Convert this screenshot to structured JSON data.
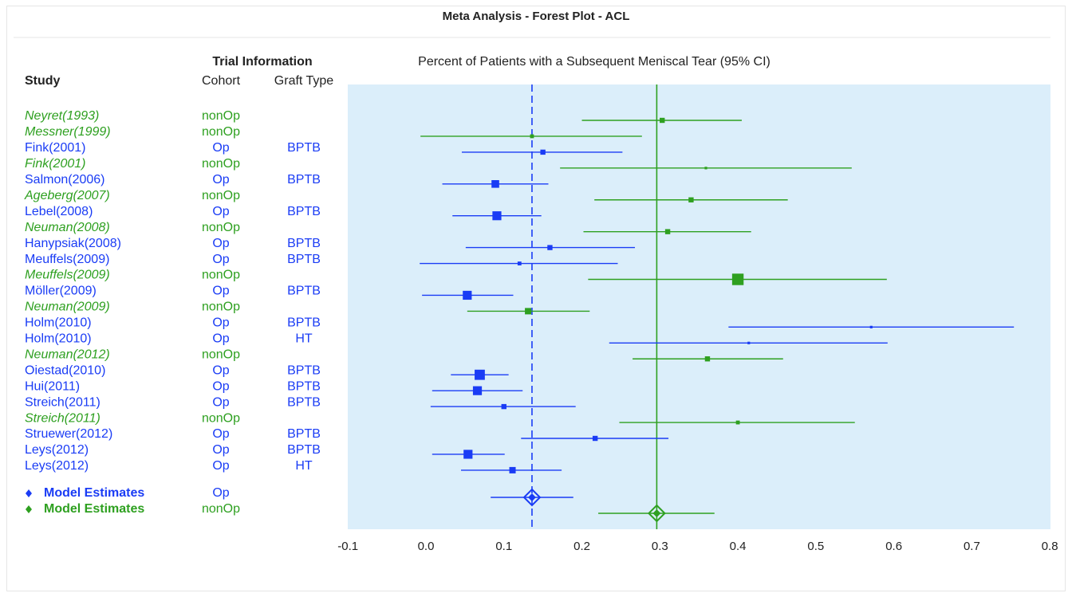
{
  "colors": {
    "op": "#1a3cf5",
    "nonop": "#2ea020",
    "plot_bg": "#dbeefa"
  },
  "chart_data": {
    "type": "forest",
    "title": "Meta Analysis - Forest Plot - ACL",
    "plot_title": "Percent of Patients with a Subsequent Meniscal Tear (95% CI)",
    "header_group": "Trial Information",
    "column_headers": {
      "study": "Study",
      "cohort": "Cohort",
      "graft": "Graft Type"
    },
    "xlim": [
      -0.1,
      0.8
    ],
    "xticks": [
      "-0.1",
      "0.0",
      "0.1",
      "0.2",
      "0.3",
      "0.4",
      "0.5",
      "0.6",
      "0.7",
      "0.8"
    ],
    "reference_lines": {
      "op_model_dashed": 0.136,
      "nonop_model_solid": 0.296
    },
    "studies": [
      {
        "study": "Neyret(1993)",
        "cohort": "nonOp",
        "graft": "",
        "est": 0.303,
        "lo": 0.2,
        "hi": 0.405,
        "size": 4
      },
      {
        "study": "Messner(1999)",
        "cohort": "nonOp",
        "graft": "",
        "est": 0.136,
        "lo": -0.007,
        "hi": 0.277,
        "size": 3
      },
      {
        "study": "Fink(2001)",
        "cohort": "Op",
        "graft": "BPTB",
        "est": 0.15,
        "lo": 0.046,
        "hi": 0.252,
        "size": 4
      },
      {
        "study": "Fink(2001)",
        "cohort": "nonOp",
        "graft": "",
        "est": 0.359,
        "lo": 0.172,
        "hi": 0.546,
        "size": 2
      },
      {
        "study": "Salmon(2006)",
        "cohort": "Op",
        "graft": "BPTB",
        "est": 0.089,
        "lo": 0.021,
        "hi": 0.157,
        "size": 6
      },
      {
        "study": "Ageberg(2007)",
        "cohort": "nonOp",
        "graft": "",
        "est": 0.34,
        "lo": 0.216,
        "hi": 0.464,
        "size": 4
      },
      {
        "study": "Lebel(2008)",
        "cohort": "Op",
        "graft": "BPTB",
        "est": 0.091,
        "lo": 0.034,
        "hi": 0.148,
        "size": 7
      },
      {
        "study": "Neuman(2008)",
        "cohort": "nonOp",
        "graft": "",
        "est": 0.31,
        "lo": 0.202,
        "hi": 0.417,
        "size": 4
      },
      {
        "study": "Hanypsiak(2008)",
        "cohort": "Op",
        "graft": "BPTB",
        "est": 0.159,
        "lo": 0.051,
        "hi": 0.268,
        "size": 4
      },
      {
        "study": "Meuffels(2009)",
        "cohort": "Op",
        "graft": "BPTB",
        "est": 0.12,
        "lo": -0.008,
        "hi": 0.246,
        "size": 3
      },
      {
        "study": "Meuffels(2009)",
        "cohort": "nonOp",
        "graft": "",
        "est": 0.4,
        "lo": 0.208,
        "hi": 0.591,
        "size": 9
      },
      {
        "study": "Möller(2009)",
        "cohort": "Op",
        "graft": "BPTB",
        "est": 0.053,
        "lo": -0.005,
        "hi": 0.112,
        "size": 7
      },
      {
        "study": "Neuman(2009)",
        "cohort": "nonOp",
        "graft": "",
        "est": 0.131,
        "lo": 0.053,
        "hi": 0.21,
        "size": 5
      },
      {
        "study": "Holm(2010)",
        "cohort": "Op",
        "graft": "BPTB",
        "est": 0.571,
        "lo": 0.388,
        "hi": 0.754,
        "size": 2
      },
      {
        "study": "Holm(2010)",
        "cohort": "Op",
        "graft": "HT",
        "est": 0.414,
        "lo": 0.235,
        "hi": 0.592,
        "size": 2
      },
      {
        "study": "Neuman(2012)",
        "cohort": "nonOp",
        "graft": "",
        "est": 0.361,
        "lo": 0.265,
        "hi": 0.458,
        "size": 4
      },
      {
        "study": "Oiestad(2010)",
        "cohort": "Op",
        "graft": "BPTB",
        "est": 0.069,
        "lo": 0.032,
        "hi": 0.106,
        "size": 8
      },
      {
        "study": "Hui(2011)",
        "cohort": "Op",
        "graft": "BPTB",
        "est": 0.066,
        "lo": 0.008,
        "hi": 0.124,
        "size": 7
      },
      {
        "study": "Streich(2011)",
        "cohort": "Op",
        "graft": "BPTB",
        "est": 0.1,
        "lo": 0.006,
        "hi": 0.192,
        "size": 4
      },
      {
        "study": "Streich(2011)",
        "cohort": "nonOp",
        "graft": "",
        "est": 0.4,
        "lo": 0.248,
        "hi": 0.55,
        "size": 3
      },
      {
        "study": "Struewer(2012)",
        "cohort": "Op",
        "graft": "BPTB",
        "est": 0.217,
        "lo": 0.122,
        "hi": 0.311,
        "size": 4
      },
      {
        "study": "Leys(2012)",
        "cohort": "Op",
        "graft": "BPTB",
        "est": 0.054,
        "lo": 0.008,
        "hi": 0.101,
        "size": 7
      },
      {
        "study": "Leys(2012)",
        "cohort": "Op",
        "graft": "HT",
        "est": 0.111,
        "lo": 0.045,
        "hi": 0.174,
        "size": 5
      }
    ],
    "models": [
      {
        "label": "Model Estimates",
        "cohort": "Op",
        "est": 0.136,
        "lo": 0.083,
        "hi": 0.189
      },
      {
        "label": "Model Estimates",
        "cohort": "nonOp",
        "est": 0.296,
        "lo": 0.221,
        "hi": 0.37
      }
    ]
  }
}
